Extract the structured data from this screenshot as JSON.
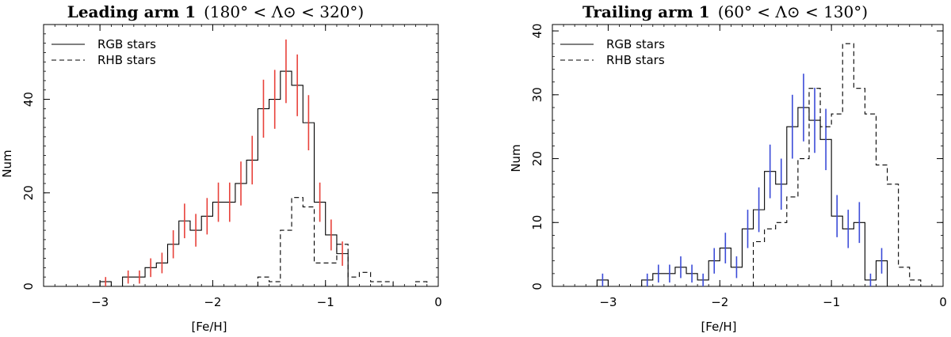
{
  "chart_data": [
    {
      "type": "histogram",
      "title_bold": "Leading arm 1",
      "title_rest": "(180° < Λ⊙ < 320°)",
      "xlabel": "[Fe/H]",
      "ylabel": "Num",
      "xlim": [
        -3.5,
        0
      ],
      "ylim": [
        0,
        56
      ],
      "xticks": [
        -3,
        -2,
        -1,
        0
      ],
      "xtick_labels": [
        "−3",
        "−2",
        "−1",
        "0"
      ],
      "yticks": [
        0,
        20,
        40
      ],
      "ytick_labels": [
        "0",
        "20",
        "40"
      ],
      "bin_width": 0.1,
      "error_color": "#e8413a",
      "legend_position": "top-left",
      "series": [
        {
          "name": "RGB stars",
          "style": "solid",
          "bin_starts": [
            -3.0,
            -2.9,
            -2.8,
            -2.7,
            -2.6,
            -2.5,
            -2.4,
            -2.3,
            -2.2,
            -2.1,
            -2.0,
            -1.9,
            -1.8,
            -1.7,
            -1.6,
            -1.5,
            -1.4,
            -1.3,
            -1.2,
            -1.1,
            -1.0,
            -0.9
          ],
          "values": [
            1,
            0,
            2,
            2,
            4,
            5,
            9,
            14,
            12,
            15,
            18,
            18,
            22,
            27,
            38,
            40,
            46,
            43,
            35,
            18,
            11,
            7
          ],
          "errors": [
            1.0,
            0,
            1.4,
            1.4,
            2.0,
            2.2,
            3.0,
            3.7,
            3.5,
            3.9,
            4.2,
            4.2,
            4.7,
            5.2,
            6.2,
            6.3,
            6.8,
            6.6,
            5.9,
            4.2,
            3.3,
            2.6
          ]
        },
        {
          "name": "RHB stars",
          "style": "dashed",
          "bin_starts": [
            -1.6,
            -1.5,
            -1.4,
            -1.3,
            -1.2,
            -1.1,
            -1.0,
            -0.9,
            -0.8,
            -0.7,
            -0.6,
            -0.5,
            -0.4,
            -0.3,
            -0.2
          ],
          "values": [
            2,
            1,
            12,
            19,
            17,
            5,
            5,
            9,
            2,
            3,
            1,
            1,
            0,
            0,
            1
          ]
        }
      ]
    },
    {
      "type": "histogram",
      "title_bold": "Trailing arm 1",
      "title_rest": "(60° < Λ⊙ < 130°)",
      "xlabel": "[Fe/H]",
      "ylabel": "Num",
      "xlim": [
        -3.5,
        0
      ],
      "ylim": [
        0,
        41
      ],
      "xticks": [
        -3,
        -2,
        -1,
        0
      ],
      "xtick_labels": [
        "−3",
        "−2",
        "−1",
        "0"
      ],
      "yticks": [
        0,
        10,
        20,
        30,
        40
      ],
      "ytick_labels": [
        "0",
        "10",
        "20",
        "30",
        "40"
      ],
      "bin_width": 0.1,
      "error_color": "#3b4bd8",
      "legend_position": "top-left",
      "series": [
        {
          "name": "RGB stars",
          "style": "solid",
          "bin_starts": [
            -3.1,
            -3.0,
            -2.9,
            -2.8,
            -2.7,
            -2.6,
            -2.5,
            -2.4,
            -2.3,
            -2.2,
            -2.1,
            -2.0,
            -1.9,
            -1.8,
            -1.7,
            -1.6,
            -1.5,
            -1.4,
            -1.3,
            -1.2,
            -1.1,
            -1.0,
            -0.9,
            -0.8,
            -0.7,
            -0.6
          ],
          "values": [
            1,
            0,
            0,
            0,
            1,
            2,
            2,
            3,
            2,
            1,
            4,
            6,
            3,
            9,
            12,
            18,
            16,
            25,
            28,
            26,
            23,
            11,
            9,
            10,
            1,
            4
          ],
          "errors": [
            1.0,
            0,
            0,
            0,
            1.0,
            1.4,
            1.4,
            1.7,
            1.4,
            1.0,
            2.0,
            2.4,
            1.7,
            3.0,
            3.5,
            4.2,
            4.0,
            5.0,
            5.3,
            5.1,
            4.8,
            3.3,
            3.0,
            3.2,
            1.0,
            2.0
          ]
        },
        {
          "name": "RHB stars",
          "style": "dashed",
          "bin_starts": [
            -1.7,
            -1.6,
            -1.5,
            -1.4,
            -1.3,
            -1.2,
            -1.1,
            -1.0,
            -0.9,
            -0.8,
            -0.7,
            -0.6,
            -0.5,
            -0.4,
            -0.3,
            -0.2
          ],
          "values": [
            7,
            9,
            10,
            14,
            20,
            31,
            25,
            27,
            38,
            31,
            27,
            19,
            16,
            3,
            1,
            0
          ]
        }
      ]
    }
  ]
}
